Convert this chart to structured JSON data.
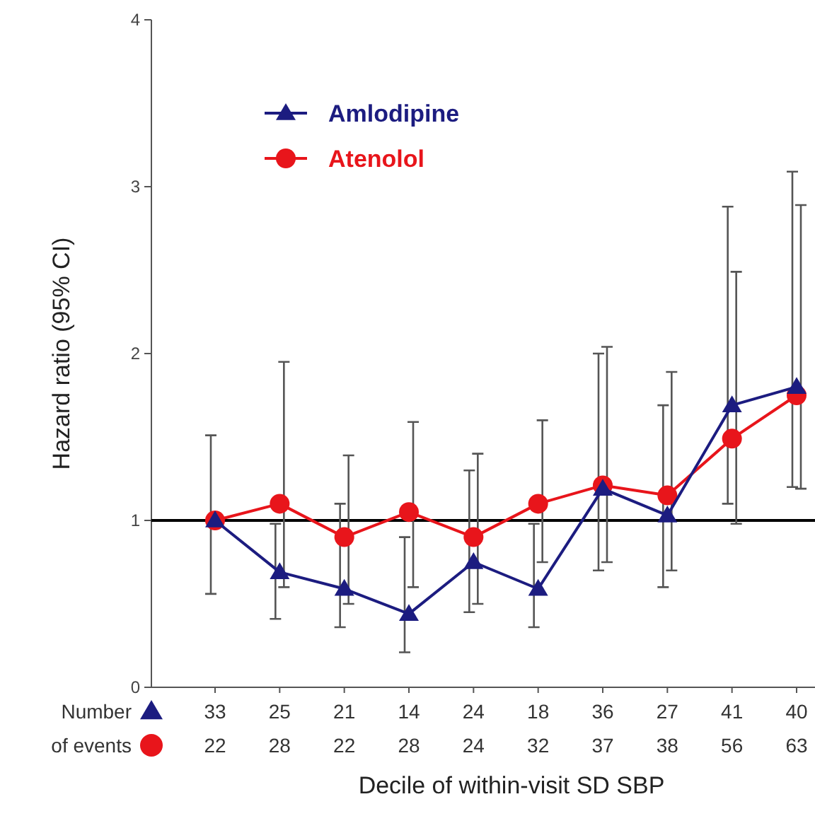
{
  "chart_data": {
    "type": "line",
    "xlabel": "Decile of within-visit SD SBP",
    "ylabel": "Hazard  ratio (95% CI)",
    "categories": [
      "33\n22",
      "25\n28",
      "21\n22",
      "14\n28",
      "24\n24",
      "18\n32",
      "36\n37",
      "27\n38",
      "41\n56",
      "40\n63"
    ],
    "series": [
      {
        "name": "Amlodipine",
        "color": "#1c1c80",
        "marker": "triangle",
        "values": [
          1.0,
          0.69,
          0.59,
          0.44,
          0.75,
          0.59,
          1.19,
          1.03,
          1.69,
          1.8
        ],
        "errors": [
          [
            0.56,
            1.51
          ],
          [
            0.41,
            0.98
          ],
          [
            0.36,
            1.1
          ],
          [
            0.21,
            0.9
          ],
          [
            0.45,
            1.3
          ],
          [
            0.36,
            0.98
          ],
          [
            0.7,
            2.0
          ],
          [
            0.6,
            1.69
          ],
          [
            1.1,
            2.88
          ],
          [
            1.2,
            3.09
          ]
        ]
      },
      {
        "name": "Atenolol",
        "color": "#e8151b",
        "marker": "circle",
        "values": [
          1.0,
          1.1,
          0.9,
          1.05,
          0.9,
          1.1,
          1.21,
          1.15,
          1.49,
          1.75
        ],
        "errors": [
          null,
          [
            0.6,
            1.95
          ],
          [
            0.5,
            1.39
          ],
          [
            0.6,
            1.59
          ],
          [
            0.5,
            1.4
          ],
          [
            0.75,
            1.6
          ],
          [
            0.75,
            2.04
          ],
          [
            0.7,
            1.89
          ],
          [
            0.98,
            2.49
          ],
          [
            1.19,
            2.89
          ]
        ]
      }
    ],
    "ylim": [
      0,
      4
    ],
    "yticks": [
      0,
      1,
      2,
      3,
      4
    ],
    "grid": false,
    "legend": "top left",
    "ref_lines": [
      {
        "axis": "y",
        "value": 1,
        "color": "#000000"
      }
    ],
    "annotations": [
      "Number\nof events"
    ]
  }
}
